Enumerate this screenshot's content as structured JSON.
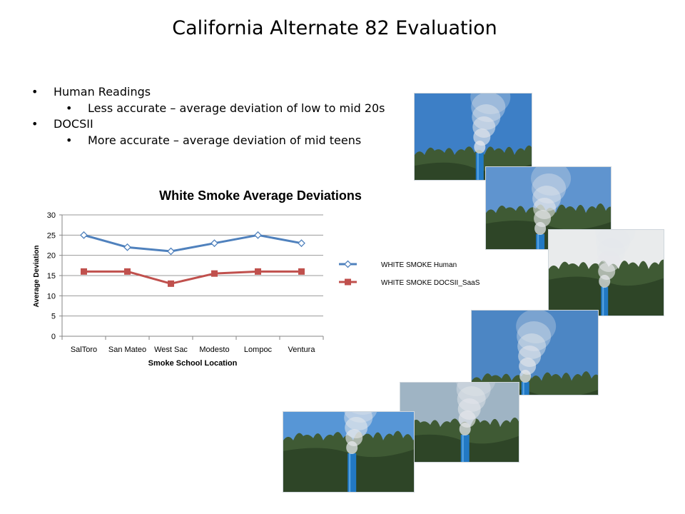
{
  "slide": {
    "title": "California Alternate 82 Evaluation",
    "bullets": [
      {
        "text": "Human Readings",
        "sub": "Less accurate – average deviation of low to mid 20s"
      },
      {
        "text": "DOCSII",
        "sub": "More accurate – average deviation of mid teens"
      }
    ]
  },
  "chart_data": {
    "type": "line",
    "title": "White Smoke Average Deviations",
    "xlabel": "Smoke School Location",
    "ylabel": "Average Deviation",
    "categories": [
      "SalToro",
      "San Mateo",
      "West Sac",
      "Modesto",
      "Lompoc",
      "Ventura"
    ],
    "ylim": [
      0,
      30
    ],
    "yticks": [
      0,
      5,
      10,
      15,
      20,
      25,
      30
    ],
    "grid": true,
    "legend": "right",
    "series": [
      {
        "name": "WHITE SMOKE Human",
        "values": [
          25,
          22,
          21,
          23,
          25,
          23
        ],
        "color": "#4f81bd",
        "marker": "diamond-open"
      },
      {
        "name": "WHITE SMOKE DOCSII_SaaS",
        "values": [
          16,
          16,
          13,
          15.5,
          16,
          16
        ],
        "color": "#c0504d",
        "marker": "square"
      }
    ]
  },
  "photos": [
    {
      "name": "photo-stack-1",
      "sky": "#3d7fc6"
    },
    {
      "name": "photo-stack-2",
      "sky": "#5f94cf"
    },
    {
      "name": "photo-stack-3",
      "sky": "#e9ebec"
    },
    {
      "name": "photo-stack-4",
      "sky": "#4c86c4"
    },
    {
      "name": "photo-stack-5",
      "sky": "#9fb4c4"
    },
    {
      "name": "photo-stack-6",
      "sky": "#5796d6"
    }
  ]
}
